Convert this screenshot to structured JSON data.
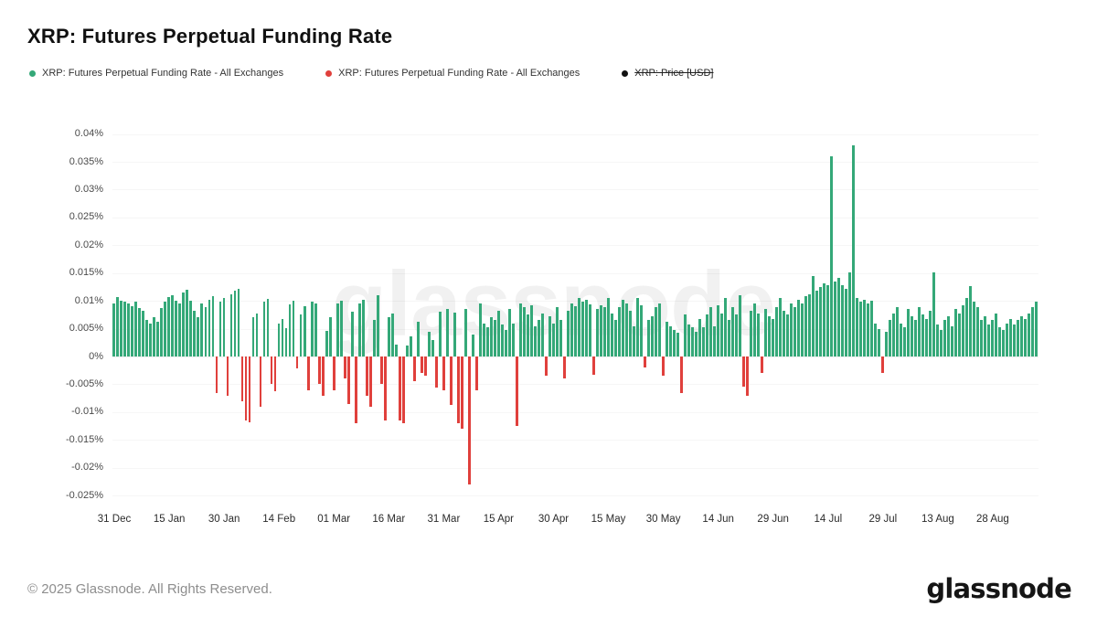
{
  "title": "XRP: Futures Perpetual Funding Rate",
  "legend": [
    {
      "label": "XRP: Futures Perpetual Funding Rate - All Exchanges",
      "color": "#34a878",
      "disabled": false
    },
    {
      "label": "XRP: Futures Perpetual Funding Rate - All Exchanges",
      "color": "#e0403c",
      "disabled": false
    },
    {
      "label": "XRP: Price [USD]",
      "color": "#111111",
      "disabled": true
    }
  ],
  "watermark": "glassnode",
  "footer": {
    "copyright": "© 2025 Glassnode. All Rights Reserved.",
    "brand": "glassnode"
  },
  "chart_data": {
    "type": "bar",
    "title": "XRP: Futures Perpetual Funding Rate",
    "series_name": "XRP: Futures Perpetual Funding Rate - All Exchanges",
    "unit": "%",
    "legend_position": "top-left",
    "grid": "faint-horizontal",
    "positive_color": "#34a878",
    "negative_color": "#e0403c",
    "ylim": [
      -0.0275,
      0.0425
    ],
    "y_tick_labels": [
      "0.04%",
      "0.035%",
      "0.03%",
      "0.025%",
      "0.02%",
      "0.015%",
      "0.01%",
      "0.005%",
      "0%",
      "-0.005%",
      "-0.01%",
      "-0.015%",
      "-0.02%",
      "-0.025%"
    ],
    "y_tick_values": [
      0.04,
      0.035,
      0.03,
      0.025,
      0.02,
      0.015,
      0.01,
      0.005,
      0,
      -0.005,
      -0.01,
      -0.015,
      -0.02,
      -0.025
    ],
    "x_tick_labels": [
      "31 Dec",
      "15 Jan",
      "30 Jan",
      "14 Feb",
      "01 Mar",
      "16 Mar",
      "31 Mar",
      "15 Apr",
      "30 Apr",
      "15 May",
      "30 May",
      "14 Jun",
      "29 Jun",
      "14 Jul",
      "29 Jul",
      "13 Aug",
      "28 Aug"
    ],
    "x_tick_day_indices": [
      0,
      15,
      30,
      45,
      60,
      75,
      90,
      105,
      120,
      135,
      150,
      165,
      180,
      195,
      210,
      225,
      240
    ],
    "x_start_label": "31 Dec",
    "x_frequency": "daily",
    "values": [
      0.0095,
      0.0107,
      0.0101,
      0.0098,
      0.0095,
      0.009,
      0.0098,
      0.0087,
      0.0082,
      0.0066,
      0.006,
      0.0071,
      0.0063,
      0.0087,
      0.0098,
      0.0107,
      0.011,
      0.0101,
      0.0095,
      0.0115,
      0.012,
      0.0101,
      0.0082,
      0.0071,
      0.0095,
      0.0088,
      0.0102,
      0.0108,
      -0.0066,
      0.0098,
      0.0105,
      -0.007,
      0.0112,
      0.0118,
      0.0122,
      -0.008,
      -0.0115,
      -0.0118,
      0.007,
      0.0078,
      -0.009,
      0.0098,
      0.0104,
      -0.005,
      -0.0062,
      0.006,
      0.0068,
      0.0051,
      0.0094,
      0.0101,
      -0.0022,
      0.0075,
      0.009,
      -0.006,
      0.0099,
      0.0095,
      -0.005,
      -0.007,
      0.0046,
      0.007,
      -0.006,
      0.0095,
      0.01,
      -0.004,
      -0.0085,
      0.008,
      -0.012,
      0.0095,
      0.0102,
      -0.007,
      -0.009,
      0.0065,
      0.011,
      -0.005,
      -0.0115,
      0.007,
      0.0078,
      0.0022,
      -0.0115,
      -0.012,
      0.002,
      0.0036,
      -0.0044,
      0.0062,
      -0.003,
      -0.0035,
      0.0045,
      0.003,
      -0.0055,
      0.008,
      -0.006,
      0.0085,
      -0.0087,
      0.0079,
      -0.012,
      -0.013,
      0.0085,
      -0.023,
      0.004,
      -0.006,
      0.0095,
      0.006,
      0.0052,
      0.007,
      0.0065,
      0.0082,
      0.0058,
      0.0048,
      0.0085,
      0.006,
      -0.0125,
      0.0095,
      0.0088,
      0.0075,
      0.0092,
      0.0055,
      0.0065,
      0.0078,
      -0.0035,
      0.0072,
      0.006,
      0.0088,
      0.0065,
      -0.004,
      0.0082,
      0.0095,
      0.009,
      0.0105,
      0.0098,
      0.0102,
      0.0094,
      -0.0033,
      0.0085,
      0.0092,
      0.0088,
      0.0105,
      0.0078,
      0.0065,
      0.0088,
      0.0102,
      0.0095,
      0.0082,
      0.0055,
      0.0105,
      0.0092,
      -0.002,
      0.0065,
      0.0072,
      0.0088,
      0.0095,
      -0.0035,
      0.0062,
      0.0055,
      0.0048,
      0.0042,
      -0.0065,
      0.0075,
      0.0058,
      0.0052,
      0.0045,
      0.0068,
      0.0052,
      0.0075,
      0.0088,
      0.0055,
      0.0092,
      0.0078,
      0.0105,
      0.0065,
      0.0088,
      0.0075,
      0.011,
      -0.0054,
      -0.0071,
      0.0082,
      0.0095,
      0.0078,
      -0.003,
      0.0085,
      0.0072,
      0.0068,
      0.0088,
      0.0105,
      0.0082,
      0.0075,
      0.0095,
      0.0088,
      0.0102,
      0.0095,
      0.0108,
      0.0112,
      0.0145,
      0.0118,
      0.0125,
      0.0132,
      0.0128,
      0.036,
      0.0135,
      0.0142,
      0.0128,
      0.0122,
      0.0152,
      0.038,
      0.0105,
      0.0098,
      0.0102,
      0.0095,
      0.01,
      0.006,
      0.005,
      -0.003,
      0.0045,
      0.0065,
      0.0078,
      0.0088,
      0.006,
      0.0052,
      0.0085,
      0.0072,
      0.0065,
      0.0088,
      0.0075,
      0.0068,
      0.0082,
      0.0152,
      0.0058,
      0.0048,
      0.0065,
      0.0072,
      0.0055,
      0.0085,
      0.0078,
      0.0092,
      0.0105,
      0.0126,
      0.0098,
      0.0088,
      0.0065,
      0.0072,
      0.0058,
      0.0065,
      0.0078,
      0.0052,
      0.0048,
      0.006,
      0.0068,
      0.0058,
      0.0065,
      0.0072,
      0.0068,
      0.0078,
      0.0088,
      0.0098
    ]
  }
}
